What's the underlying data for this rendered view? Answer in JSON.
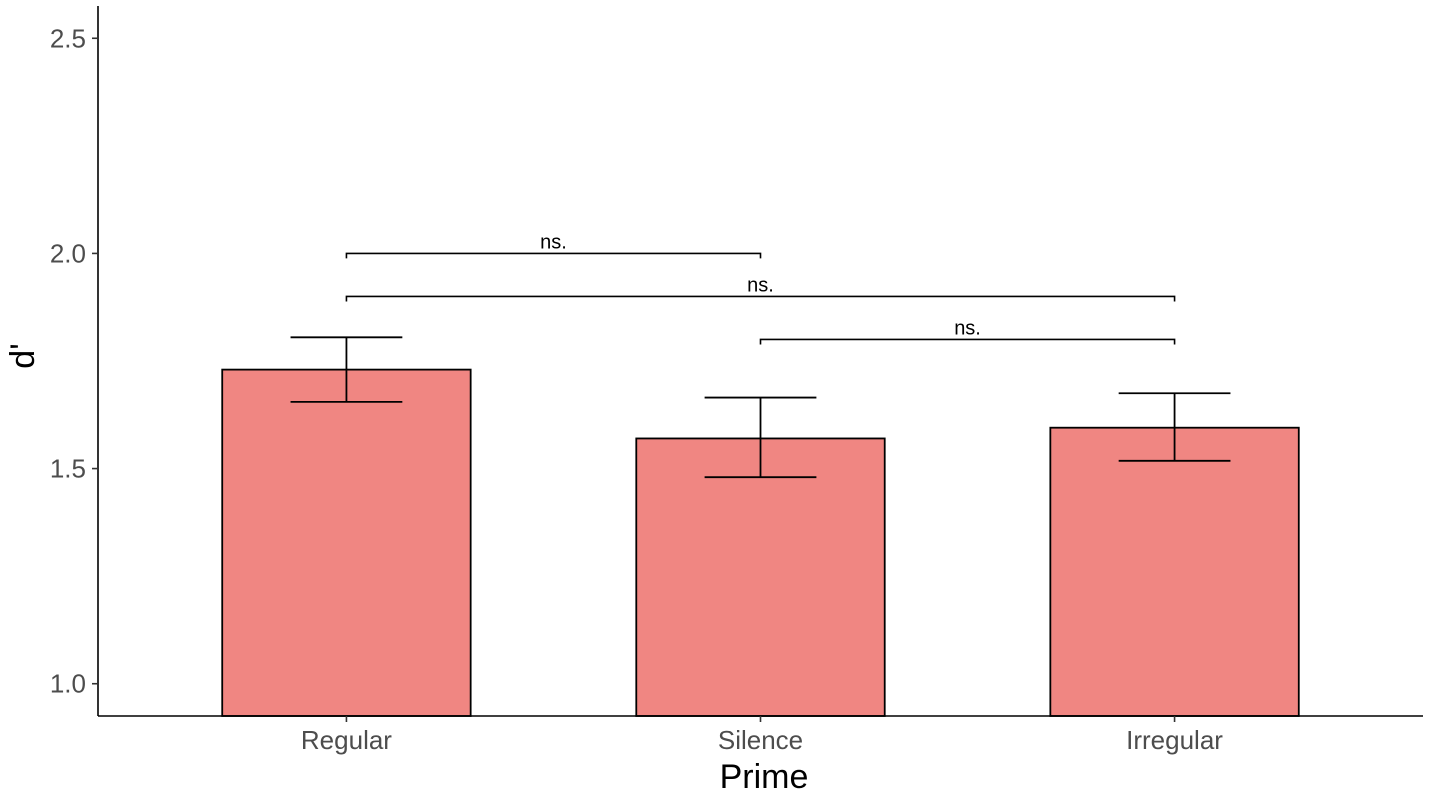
{
  "chart_data": {
    "type": "bar",
    "categories": [
      "Regular",
      "Silence",
      "Irregular"
    ],
    "values": [
      1.73,
      1.57,
      1.595
    ],
    "error_bars": [
      {
        "lower": 1.655,
        "upper": 1.805
      },
      {
        "lower": 1.48,
        "upper": 1.665
      },
      {
        "lower": 1.518,
        "upper": 1.675
      }
    ],
    "xlabel": "Prime",
    "ylabel": "d'",
    "ylim": [
      0.925,
      2.575
    ],
    "yticks": [
      "1.0",
      "1.5",
      "2.0",
      "2.5"
    ],
    "grid": false,
    "colors": {
      "bar_fill": "#F08682",
      "bar_stroke": "#000000"
    },
    "significance": [
      {
        "from": "Regular",
        "to": "Silence",
        "y": 2.0,
        "label": "ns."
      },
      {
        "from": "Regular",
        "to": "Irregular",
        "y": 1.9,
        "label": "ns."
      },
      {
        "from": "Silence",
        "to": "Irregular",
        "y": 1.8,
        "label": "ns."
      }
    ]
  }
}
